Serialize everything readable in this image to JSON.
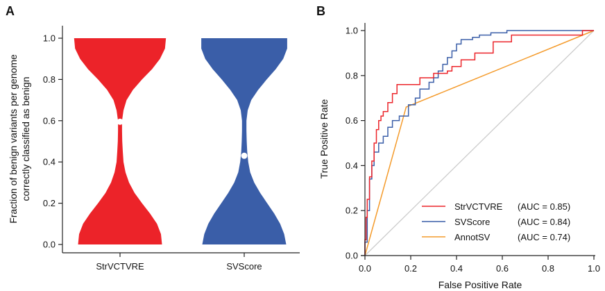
{
  "chart_data": [
    {
      "panel": "A",
      "type": "violin",
      "categories": [
        "StrVCTVRE",
        "SVScore"
      ],
      "ylabel_lines": [
        "Fraction of benign variants per genome",
        "correctly classified as benign"
      ],
      "ylim": [
        0,
        1
      ],
      "yticks": [
        0.0,
        0.2,
        0.4,
        0.6,
        0.8,
        1.0
      ],
      "ytick_labels": [
        "0.0",
        "0.2",
        "0.4",
        "0.6",
        "0.8",
        "1.0"
      ],
      "series": [
        {
          "colors": {
            "fill": "#ec2329"
          },
          "median": 0.595,
          "profile_y": [
            0.0,
            0.05,
            0.1,
            0.15,
            0.2,
            0.25,
            0.3,
            0.35,
            0.4,
            0.45,
            0.5,
            0.55,
            0.6,
            0.65,
            0.7,
            0.75,
            0.8,
            0.85,
            0.9,
            0.95,
            1.0
          ],
          "profile_halfwidth": [
            0.84,
            0.82,
            0.74,
            0.6,
            0.44,
            0.29,
            0.18,
            0.11,
            0.07,
            0.055,
            0.045,
            0.04,
            0.04,
            0.07,
            0.13,
            0.26,
            0.44,
            0.64,
            0.8,
            0.9,
            0.92
          ]
        },
        {
          "colors": {
            "fill": "#3a5ea8"
          },
          "median": 0.43,
          "profile_y": [
            0.0,
            0.05,
            0.1,
            0.15,
            0.2,
            0.25,
            0.3,
            0.35,
            0.4,
            0.45,
            0.5,
            0.55,
            0.6,
            0.65,
            0.7,
            0.75,
            0.8,
            0.85,
            0.9,
            0.95,
            1.0
          ],
          "profile_halfwidth": [
            0.84,
            0.8,
            0.72,
            0.6,
            0.46,
            0.32,
            0.2,
            0.12,
            0.08,
            0.06,
            0.05,
            0.045,
            0.045,
            0.07,
            0.14,
            0.28,
            0.45,
            0.63,
            0.78,
            0.86,
            0.86
          ]
        }
      ]
    },
    {
      "panel": "B",
      "type": "line",
      "xlabel": "False Positive Rate",
      "ylabel": "True Positive Rate",
      "xlim": [
        0,
        1
      ],
      "ylim": [
        0,
        1
      ],
      "xticks": [
        "0.0",
        "0.2",
        "0.4",
        "0.6",
        "0.8",
        "1.0"
      ],
      "yticks": [
        "0.0",
        "0.2",
        "0.4",
        "0.6",
        "0.8",
        "1.0"
      ],
      "legend_position": "lower-right",
      "diagonal": {
        "colors": {
          "stroke": "#cccccc"
        },
        "x": [
          0,
          1
        ],
        "y": [
          0,
          1
        ]
      },
      "series": [
        {
          "name": "StrVCTVRE",
          "auc_label": "(AUC = 0.85)",
          "colors": {
            "stroke": "#ec2329"
          },
          "x": [
            0.0,
            0.0,
            0.005,
            0.005,
            0.01,
            0.01,
            0.02,
            0.02,
            0.03,
            0.03,
            0.04,
            0.04,
            0.05,
            0.05,
            0.06,
            0.06,
            0.07,
            0.07,
            0.08,
            0.08,
            0.1,
            0.1,
            0.12,
            0.12,
            0.14,
            0.14,
            0.24,
            0.24,
            0.3,
            0.3,
            0.36,
            0.36,
            0.38,
            0.38,
            0.42,
            0.42,
            0.48,
            0.48,
            0.56,
            0.56,
            0.64,
            0.64,
            0.95,
            0.95,
            1.0
          ],
          "y": [
            0.0,
            0.07,
            0.07,
            0.17,
            0.17,
            0.25,
            0.25,
            0.35,
            0.35,
            0.42,
            0.42,
            0.5,
            0.5,
            0.56,
            0.56,
            0.6,
            0.6,
            0.62,
            0.62,
            0.64,
            0.64,
            0.68,
            0.68,
            0.72,
            0.72,
            0.76,
            0.76,
            0.79,
            0.79,
            0.81,
            0.81,
            0.82,
            0.82,
            0.84,
            0.84,
            0.87,
            0.87,
            0.9,
            0.9,
            0.95,
            0.95,
            0.98,
            0.98,
            1.0,
            1.0
          ]
        },
        {
          "name": "SVScore",
          "auc_label": "(AUC = 0.84)",
          "colors": {
            "stroke": "#3a5ea8"
          },
          "x": [
            0.0,
            0.0,
            0.01,
            0.01,
            0.02,
            0.02,
            0.03,
            0.03,
            0.04,
            0.04,
            0.06,
            0.06,
            0.08,
            0.08,
            0.1,
            0.1,
            0.12,
            0.12,
            0.15,
            0.15,
            0.19,
            0.19,
            0.22,
            0.22,
            0.24,
            0.24,
            0.28,
            0.28,
            0.3,
            0.3,
            0.32,
            0.32,
            0.34,
            0.34,
            0.36,
            0.36,
            0.38,
            0.38,
            0.4,
            0.4,
            0.42,
            0.42,
            0.47,
            0.47,
            0.5,
            0.5,
            0.55,
            0.55,
            0.62,
            0.62,
            1.0
          ],
          "y": [
            0.0,
            0.06,
            0.06,
            0.2,
            0.2,
            0.34,
            0.34,
            0.4,
            0.4,
            0.46,
            0.46,
            0.5,
            0.5,
            0.53,
            0.53,
            0.57,
            0.57,
            0.6,
            0.6,
            0.62,
            0.62,
            0.67,
            0.67,
            0.7,
            0.7,
            0.74,
            0.74,
            0.77,
            0.77,
            0.79,
            0.79,
            0.82,
            0.82,
            0.85,
            0.85,
            0.88,
            0.88,
            0.91,
            0.91,
            0.94,
            0.94,
            0.96,
            0.96,
            0.97,
            0.97,
            0.98,
            0.98,
            0.99,
            0.99,
            1.0,
            1.0
          ]
        },
        {
          "name": "AnnotSV",
          "auc_label": "(AUC = 0.74)",
          "colors": {
            "stroke": "#f49a2a"
          },
          "x": [
            0.0,
            0.18,
            1.0
          ],
          "y": [
            0.0,
            0.66,
            1.0
          ]
        }
      ]
    }
  ]
}
